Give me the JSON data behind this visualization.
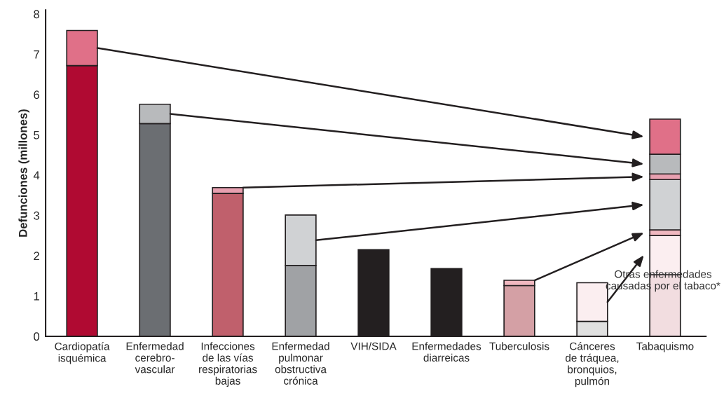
{
  "chart_data": {
    "type": "bar",
    "stacked": true,
    "ylabel": "Defunciones (millones)",
    "categories": [
      "Cardiopatía\nisquémica",
      "Enfermedad\ncerebro-\nvascular",
      "Infecciones\nde las vías\nrespiratorias\nbajas",
      "Enfermedad\npulmonar\nobstructiva\ncrónica",
      "VIH/SIDA",
      "Enfermedades\ndiarreicas",
      "Tuberculosis",
      "Cánceres\nde tráquea,\nbronquios,\npulmón",
      "Tabaquismo"
    ],
    "series": [
      {
        "values": [
          6.72,
          5.28,
          3.55,
          1.76,
          2.15,
          1.68,
          1.26,
          0.37,
          1.53
        ],
        "colors": [
          "#b00a32",
          "#6b6e72",
          "#c0606c",
          "#a0a2a5",
          "#231f20",
          "#231f20",
          "#d4a0a5",
          "#e0e0e0",
          "#f2dde0"
        ]
      },
      {
        "values": [
          0.87,
          0.48,
          0.14,
          1.25,
          null,
          null,
          0.13,
          0.96,
          0.97
        ],
        "colors": [
          "#e07088",
          "#b8babc",
          "#e8a0b0",
          "#d0d2d4",
          null,
          null,
          "#f0b8c0",
          "#fbeef0",
          "#fbeef0"
        ]
      },
      {
        "values": [
          null,
          null,
          null,
          null,
          null,
          null,
          null,
          null,
          0.14
        ],
        "colors": [
          null,
          null,
          null,
          null,
          null,
          null,
          null,
          null,
          "#f0b8c0"
        ]
      },
      {
        "values": [
          null,
          null,
          null,
          null,
          null,
          null,
          null,
          null,
          1.25
        ],
        "colors": [
          null,
          null,
          null,
          null,
          null,
          null,
          null,
          null,
          "#d0d2d4"
        ]
      },
      {
        "values": [
          null,
          null,
          null,
          null,
          null,
          null,
          null,
          null,
          0.14
        ],
        "colors": [
          null,
          null,
          null,
          null,
          null,
          null,
          null,
          null,
          "#e8a0b0"
        ]
      },
      {
        "values": [
          null,
          null,
          null,
          null,
          null,
          null,
          null,
          null,
          0.49
        ],
        "colors": [
          null,
          null,
          null,
          null,
          null,
          null,
          null,
          null,
          "#b8babc"
        ]
      },
      {
        "values": [
          null,
          null,
          null,
          null,
          null,
          null,
          null,
          null,
          0.87
        ],
        "colors": [
          null,
          null,
          null,
          null,
          null,
          null,
          null,
          null,
          "#e07088"
        ]
      }
    ],
    "ylim": [
      0,
      8.1
    ],
    "yticks": [
      0,
      1,
      2,
      3,
      4,
      5,
      6,
      7,
      8
    ],
    "grid": false,
    "legend": false,
    "annotations": [
      "Otras enfermedades\ncausadas por el tabaco*"
    ]
  }
}
